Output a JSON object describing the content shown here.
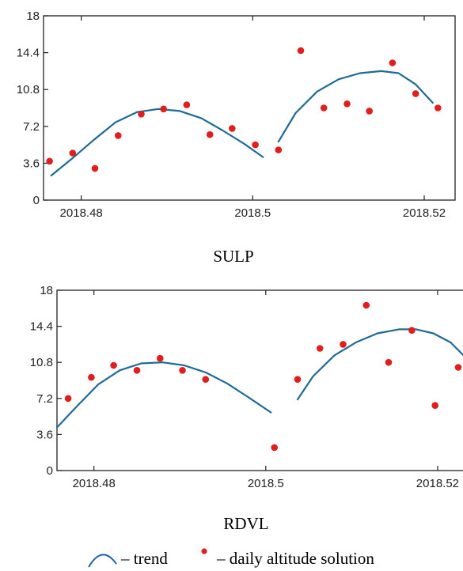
{
  "chart_data": [
    {
      "type": "scatter",
      "caption": "SULP",
      "xlim": [
        2018.4756,
        2018.5236
      ],
      "ylim": [
        0,
        18
      ],
      "x_ticks": [
        {
          "value": 2018.48,
          "label": "2018.48"
        },
        {
          "value": 2018.5,
          "label": "2018.5"
        },
        {
          "value": 2018.52,
          "label": "2018.52"
        }
      ],
      "y_ticks": [
        {
          "value": 0,
          "label": "0"
        },
        {
          "value": 3.6,
          "label": "3.6"
        },
        {
          "value": 7.2,
          "label": "7.2"
        },
        {
          "value": 10.8,
          "label": "10.8"
        },
        {
          "value": 14.4,
          "label": "14.4"
        },
        {
          "value": 18,
          "label": "18"
        }
      ],
      "points": [
        {
          "x": 2018.4763,
          "y": 3.8
        },
        {
          "x": 2018.479,
          "y": 4.6
        },
        {
          "x": 2018.4816,
          "y": 3.1
        },
        {
          "x": 2018.4843,
          "y": 6.3
        },
        {
          "x": 2018.487,
          "y": 8.4
        },
        {
          "x": 2018.4896,
          "y": 8.9
        },
        {
          "x": 2018.4923,
          "y": 9.3
        },
        {
          "x": 2018.495,
          "y": 6.4
        },
        {
          "x": 2018.4976,
          "y": 7.0
        },
        {
          "x": 2018.5003,
          "y": 5.4
        },
        {
          "x": 2018.503,
          "y": 4.9
        },
        {
          "x": 2018.5056,
          "y": 14.6
        },
        {
          "x": 2018.5083,
          "y": 9.0
        },
        {
          "x": 2018.511,
          "y": 9.4
        },
        {
          "x": 2018.5136,
          "y": 8.7
        },
        {
          "x": 2018.5163,
          "y": 13.4
        },
        {
          "x": 2018.519,
          "y": 10.4
        },
        {
          "x": 2018.5216,
          "y": 9.0
        }
      ],
      "trend": [
        {
          "x": [
            2018.4765,
            2018.479,
            2018.4815,
            2018.484,
            2018.4865,
            2018.489,
            2018.4915,
            2018.494,
            2018.4965,
            2018.499,
            2018.5012
          ],
          "y": [
            2.4,
            4.1,
            5.9,
            7.6,
            8.6,
            8.9,
            8.7,
            8.0,
            6.8,
            5.5,
            4.2
          ]
        },
        {
          "x": [
            2018.503,
            2018.505,
            2018.5075,
            2018.51,
            2018.5125,
            2018.515,
            2018.517,
            2018.519,
            2018.521
          ],
          "y": [
            5.7,
            8.5,
            10.6,
            11.8,
            12.4,
            12.6,
            12.4,
            11.3,
            9.5
          ]
        }
      ]
    },
    {
      "type": "scatter",
      "caption": "RDVL",
      "xlim": [
        2018.4757,
        2018.5236
      ],
      "ylim": [
        0,
        18
      ],
      "x_ticks": [
        {
          "value": 2018.48,
          "label": "2018.48"
        },
        {
          "value": 2018.5,
          "label": "2018.5"
        },
        {
          "value": 2018.52,
          "label": "2018.52"
        }
      ],
      "y_ticks": [
        {
          "value": 0,
          "label": "0"
        },
        {
          "value": 3.6,
          "label": "3.6"
        },
        {
          "value": 7.2,
          "label": "7.2"
        },
        {
          "value": 10.8,
          "label": "10.8"
        },
        {
          "value": 14.4,
          "label": "14.4"
        },
        {
          "value": 18,
          "label": "18"
        }
      ],
      "points": [
        {
          "x": 2018.477,
          "y": 7.2
        },
        {
          "x": 2018.4797,
          "y": 9.3
        },
        {
          "x": 2018.4823,
          "y": 10.5
        },
        {
          "x": 2018.485,
          "y": 10.0
        },
        {
          "x": 2018.4877,
          "y": 11.2
        },
        {
          "x": 2018.4903,
          "y": 10.0
        },
        {
          "x": 2018.493,
          "y": 9.1
        },
        {
          "x": 2018.501,
          "y": 2.3
        },
        {
          "x": 2018.5037,
          "y": 9.1
        },
        {
          "x": 2018.5063,
          "y": 12.2
        },
        {
          "x": 2018.509,
          "y": 12.6
        },
        {
          "x": 2018.5117,
          "y": 16.5
        },
        {
          "x": 2018.5143,
          "y": 10.8
        },
        {
          "x": 2018.517,
          "y": 14.0
        },
        {
          "x": 2018.5197,
          "y": 6.5
        },
        {
          "x": 2018.5224,
          "y": 10.3
        }
      ],
      "trend": [
        {
          "x": [
            2018.4757,
            2018.478,
            2018.4805,
            2018.483,
            2018.4855,
            2018.488,
            2018.4905,
            2018.493,
            2018.4955,
            2018.498,
            2018.5006
          ],
          "y": [
            4.3,
            6.4,
            8.6,
            10.0,
            10.7,
            10.8,
            10.5,
            9.8,
            8.7,
            7.3,
            5.8
          ]
        },
        {
          "x": [
            2018.5037,
            2018.5055,
            2018.508,
            2018.5105,
            2018.513,
            2018.5155,
            2018.5175,
            2018.5195,
            2018.5215,
            2018.5236
          ],
          "y": [
            7.1,
            9.4,
            11.5,
            12.8,
            13.7,
            14.1,
            14.1,
            13.7,
            12.8,
            11.0
          ]
        }
      ]
    }
  ],
  "legend": {
    "trend_label": "– trend",
    "points_label": "– daily altitude solution"
  },
  "colors": {
    "trend": "#1f6a96",
    "points": "#e01e1e",
    "axis": "#222222",
    "legend_icon": "#1f5fa8"
  }
}
